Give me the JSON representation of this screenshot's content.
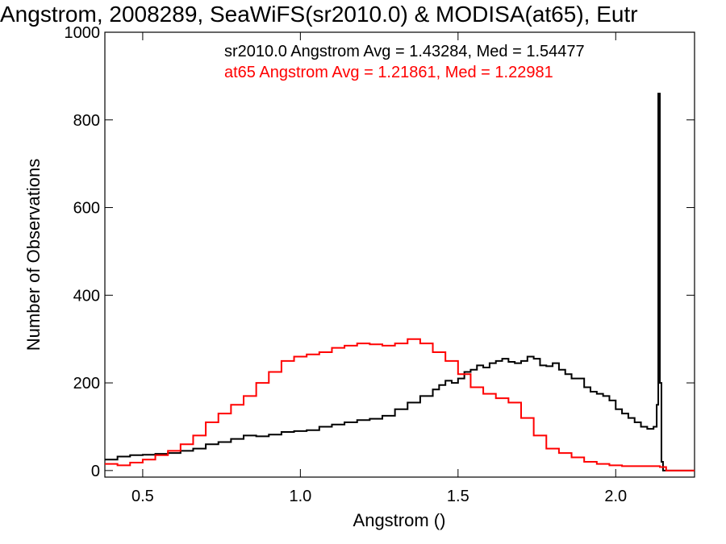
{
  "chart_data": {
    "type": "line",
    "title": "Angstrom, 2008289, SeaWiFS(sr2010.0) & MODISA(at65), Eutr",
    "xlabel": "Angstrom ()",
    "ylabel": "Number of Observations",
    "xlim": [
      0.38,
      2.25
    ],
    "ylim": [
      -15,
      1000
    ],
    "xticks": [
      0.5,
      1.0,
      1.5,
      2.0
    ],
    "xtick_labels": [
      "0.5",
      "1.0",
      "1.5",
      "2.0"
    ],
    "yticks": [
      0,
      200,
      400,
      600,
      800,
      1000
    ],
    "ytick_labels": [
      "0",
      "200",
      "400",
      "600",
      "800",
      "1000"
    ],
    "step": true,
    "series": [
      {
        "name": "sr2010.0",
        "color": "#000000",
        "legend": "sr2010.0 Angstrom Avg = 1.43284, Med = 1.54477",
        "x": [
          0.38,
          0.42,
          0.46,
          0.5,
          0.54,
          0.58,
          0.62,
          0.66,
          0.7,
          0.74,
          0.78,
          0.82,
          0.86,
          0.9,
          0.94,
          0.98,
          1.02,
          1.06,
          1.1,
          1.14,
          1.18,
          1.22,
          1.26,
          1.3,
          1.34,
          1.38,
          1.42,
          1.44,
          1.46,
          1.48,
          1.5,
          1.52,
          1.54,
          1.56,
          1.58,
          1.6,
          1.62,
          1.64,
          1.66,
          1.68,
          1.7,
          1.72,
          1.74,
          1.76,
          1.78,
          1.8,
          1.82,
          1.84,
          1.86,
          1.88,
          1.9,
          1.92,
          1.94,
          1.96,
          1.98,
          2.0,
          2.02,
          2.04,
          2.06,
          2.08,
          2.1,
          2.12,
          2.13,
          2.135,
          2.14,
          2.145,
          2.15,
          2.16,
          2.25
        ],
        "y": [
          25,
          32,
          35,
          36,
          38,
          40,
          45,
          50,
          60,
          65,
          72,
          80,
          78,
          82,
          88,
          90,
          92,
          100,
          105,
          110,
          115,
          118,
          125,
          140,
          155,
          170,
          185,
          195,
          205,
          200,
          210,
          225,
          230,
          240,
          235,
          245,
          250,
          255,
          248,
          245,
          250,
          260,
          255,
          240,
          238,
          245,
          230,
          220,
          210,
          210,
          190,
          180,
          175,
          170,
          160,
          140,
          130,
          120,
          110,
          100,
          95,
          100,
          150,
          860,
          200,
          20,
          0,
          0,
          0
        ]
      },
      {
        "name": "at65",
        "color": "#ff0000",
        "legend": "at65 Angstrom Avg = 1.21861, Med = 1.22981",
        "x": [
          0.38,
          0.42,
          0.46,
          0.5,
          0.54,
          0.58,
          0.62,
          0.66,
          0.7,
          0.74,
          0.78,
          0.82,
          0.86,
          0.9,
          0.94,
          0.98,
          1.02,
          1.06,
          1.1,
          1.14,
          1.18,
          1.22,
          1.26,
          1.3,
          1.34,
          1.38,
          1.42,
          1.46,
          1.5,
          1.54,
          1.58,
          1.62,
          1.66,
          1.7,
          1.74,
          1.78,
          1.82,
          1.86,
          1.9,
          1.94,
          1.98,
          2.02,
          2.06,
          2.1,
          2.14,
          2.16,
          2.25
        ],
        "y": [
          15,
          12,
          18,
          25,
          35,
          45,
          60,
          80,
          110,
          130,
          150,
          170,
          200,
          225,
          250,
          260,
          265,
          270,
          280,
          285,
          290,
          288,
          285,
          290,
          300,
          290,
          270,
          250,
          220,
          190,
          175,
          165,
          155,
          120,
          80,
          50,
          40,
          30,
          20,
          15,
          12,
          10,
          10,
          10,
          8,
          0,
          0
        ]
      }
    ],
    "grid": false,
    "legend_position": "top-right"
  }
}
